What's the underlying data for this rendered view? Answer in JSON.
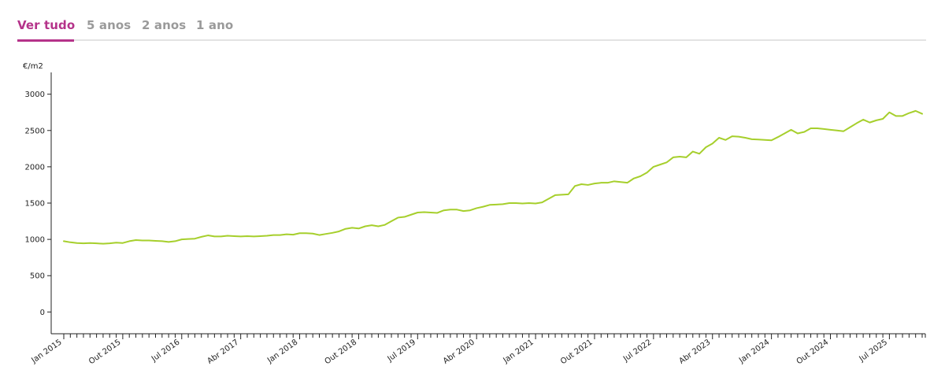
{
  "tabs": [
    {
      "label": "Ver tudo",
      "active": true
    },
    {
      "label": "5 anos",
      "active": false
    },
    {
      "label": "2 anos",
      "active": false
    },
    {
      "label": "1 ano",
      "active": false
    }
  ],
  "colors": {
    "accent": "#b5338a",
    "line": "#a6cf2c",
    "inactive_tab": "#9a9a9a",
    "axis": "#222222"
  },
  "chart_data": {
    "type": "line",
    "title": "",
    "ylabel": "€/m2",
    "xlabel": "",
    "ylim": [
      -300,
      3300
    ],
    "yticks": [
      0,
      500,
      1000,
      1500,
      2000,
      2500,
      3000
    ],
    "grid": false,
    "legend": "none",
    "x_start": "Jan 2015",
    "x_tick_labels": [
      "Jan 2015",
      "Out 2015",
      "Jul 2016",
      "Abr 2017",
      "Jan 2018",
      "Out 2018",
      "Jul 2019",
      "Abr 2020",
      "Jan 2021",
      "Out 2021",
      "Jul 2022",
      "Abr 2023",
      "Jan 2024",
      "Out 2024",
      "Jul 2025"
    ],
    "series": [
      {
        "values": [
          975,
          960,
          950,
          945,
          950,
          945,
          940,
          945,
          955,
          950,
          975,
          990,
          985,
          985,
          980,
          975,
          965,
          975,
          1000,
          1005,
          1010,
          1035,
          1055,
          1040,
          1040,
          1050,
          1045,
          1040,
          1045,
          1040,
          1045,
          1050,
          1060,
          1060,
          1070,
          1065,
          1085,
          1085,
          1080,
          1060,
          1075,
          1090,
          1110,
          1145,
          1160,
          1150,
          1180,
          1195,
          1180,
          1200,
          1250,
          1300,
          1310,
          1340,
          1370,
          1375,
          1370,
          1365,
          1400,
          1410,
          1410,
          1390,
          1400,
          1430,
          1450,
          1475,
          1480,
          1485,
          1500,
          1500,
          1495,
          1500,
          1495,
          1510,
          1560,
          1610,
          1615,
          1620,
          1735,
          1760,
          1750,
          1770,
          1780,
          1780,
          1800,
          1790,
          1780,
          1840,
          1870,
          1920,
          2000,
          2030,
          2060,
          2130,
          2140,
          2130,
          2210,
          2180,
          2270,
          2320,
          2400,
          2370,
          2420,
          2415,
          2400,
          2380,
          2375,
          2370,
          2365,
          2410,
          2460,
          2510,
          2460,
          2480,
          2530,
          2530,
          2520,
          2510,
          2500,
          2490,
          2545,
          2600,
          2650,
          2610,
          2640,
          2660,
          2750,
          2700,
          2700,
          2740,
          2770,
          2730
        ]
      }
    ]
  }
}
